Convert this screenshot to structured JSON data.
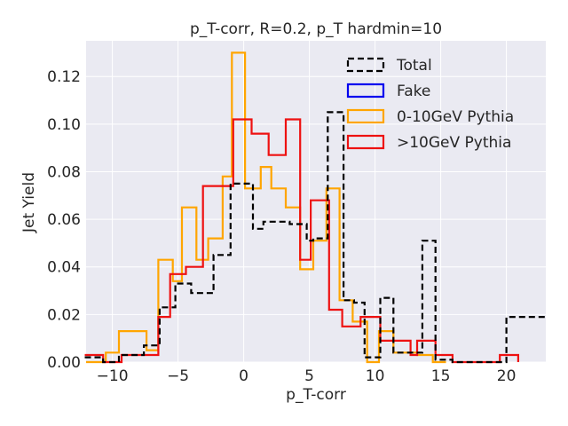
{
  "chart_data": {
    "type": "histogram-step",
    "title": "p_T-corr, R=0.2, p_T hardmin=10",
    "xlabel": "p_T-corr",
    "ylabel": "Jet Yield",
    "xlim": [
      -12,
      23
    ],
    "ylim": [
      0,
      0.135
    ],
    "xticks": [
      -10,
      -5,
      0,
      5,
      10,
      15,
      20
    ],
    "xtick_labels": [
      "−10",
      "−5",
      "0",
      "5",
      "10",
      "15",
      "20"
    ],
    "yticks": [
      0.0,
      0.02,
      0.04,
      0.06,
      0.08,
      0.1,
      0.12
    ],
    "ytick_labels": [
      "0.00",
      "0.02",
      "0.04",
      "0.06",
      "0.08",
      "0.10",
      "0.12"
    ],
    "grid": true,
    "legend_position": "top-right",
    "series": [
      {
        "name": "Total",
        "color": "#000000",
        "dashed": true,
        "x": [
          -12.1,
          -10.7,
          -9.5,
          -8.0,
          -7.6,
          -6.4,
          -5.2,
          -4.0,
          -3.0,
          -2.3,
          -1.0,
          0.7,
          1.5,
          2.1,
          3.5,
          4.8,
          5.3,
          6.4,
          7.6,
          8.4,
          9.2,
          10.4,
          11.4,
          12.0,
          13.0,
          13.2,
          13.6,
          14.3,
          14.6,
          15.2,
          15.9,
          19.9,
          20.0,
          23.0
        ],
        "y": [
          0.002,
          0.0,
          0.003,
          0.003,
          0.007,
          0.023,
          0.033,
          0.029,
          0.029,
          0.045,
          0.075,
          0.056,
          0.059,
          0.059,
          0.058,
          0.051,
          0.052,
          0.105,
          0.026,
          0.025,
          0.002,
          0.027,
          0.004,
          0.004,
          0.004,
          0.004,
          0.051,
          0.051,
          0.001,
          0.001,
          0.0,
          0.0,
          0.019,
          0.019
        ]
      },
      {
        "name": "Fake",
        "color": "#0000ee",
        "dashed": false,
        "x": [],
        "y": []
      },
      {
        "name": "0-10GeV Pythia",
        "color": "#ffa500",
        "dashed": false,
        "x": [
          -12.0,
          -10.5,
          -9.5,
          -8.7,
          -7.4,
          -6.5,
          -5.4,
          -4.7,
          -3.6,
          -2.7,
          -1.6,
          -0.9,
          0.1,
          1.3,
          2.1,
          3.2,
          4.3,
          5.3,
          6.3,
          7.3,
          8.3,
          9.4,
          10.3,
          11.4,
          12.0,
          13.2,
          14.4,
          15.4
        ],
        "y": [
          0.0,
          0.004,
          0.013,
          0.013,
          0.005,
          0.043,
          0.034,
          0.065,
          0.043,
          0.052,
          0.078,
          0.13,
          0.073,
          0.082,
          0.073,
          0.065,
          0.039,
          0.051,
          0.073,
          0.026,
          0.017,
          0.0,
          0.013,
          0.004,
          0.004,
          0.003,
          0.0,
          0.0
        ]
      },
      {
        "name": ">10GeV Pythia",
        "color": "#ee1111",
        "dashed": false,
        "x": [
          -12.1,
          -10.7,
          -9.3,
          -8.3,
          -7.0,
          -6.5,
          -5.6,
          -4.4,
          -3.1,
          -1.9,
          -0.8,
          0.6,
          1.9,
          3.2,
          4.3,
          5.1,
          6.5,
          7.5,
          8.9,
          10.4,
          11.5,
          12.7,
          13.2,
          14.6,
          15.9,
          19.5,
          20.9
        ],
        "y": [
          0.003,
          0.0,
          0.003,
          0.003,
          0.003,
          0.019,
          0.037,
          0.04,
          0.074,
          0.074,
          0.102,
          0.096,
          0.087,
          0.102,
          0.043,
          0.068,
          0.022,
          0.015,
          0.019,
          0.009,
          0.009,
          0.003,
          0.009,
          0.003,
          0.0,
          0.003,
          0.0
        ]
      }
    ]
  }
}
